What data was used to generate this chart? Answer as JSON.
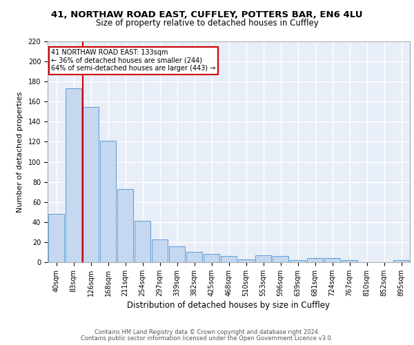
{
  "title1": "41, NORTHAW ROAD EAST, CUFFLEY, POTTERS BAR, EN6 4LU",
  "title2": "Size of property relative to detached houses in Cuffley",
  "xlabel": "Distribution of detached houses by size in Cuffley",
  "ylabel": "Number of detached properties",
  "categories": [
    "40sqm",
    "83sqm",
    "126sqm",
    "168sqm",
    "211sqm",
    "254sqm",
    "297sqm",
    "339sqm",
    "382sqm",
    "425sqm",
    "468sqm",
    "510sqm",
    "553sqm",
    "596sqm",
    "639sqm",
    "681sqm",
    "724sqm",
    "767sqm",
    "810sqm",
    "852sqm",
    "895sqm"
  ],
  "values": [
    48,
    173,
    155,
    121,
    73,
    41,
    23,
    16,
    10,
    8,
    6,
    3,
    7,
    6,
    2,
    4,
    4,
    2,
    0,
    0,
    2
  ],
  "bar_color": "#c5d8f0",
  "bar_edge_color": "#5b9bd5",
  "property_line_index": 2,
  "annotation_text1": "41 NORTHAW ROAD EAST: 133sqm",
  "annotation_text2": "← 36% of detached houses are smaller (244)",
  "annotation_text3": "64% of semi-detached houses are larger (443) →",
  "annotation_box_color": "#ffffff",
  "annotation_box_edge": "#cc0000",
  "vline_color": "#cc0000",
  "footer1": "Contains HM Land Registry data © Crown copyright and database right 2024.",
  "footer2": "Contains public sector information licensed under the Open Government Licence v3.0.",
  "ylim": [
    0,
    220
  ],
  "yticks": [
    0,
    20,
    40,
    60,
    80,
    100,
    120,
    140,
    160,
    180,
    200,
    220
  ],
  "background_color": "#e8eef8",
  "grid_color": "#ffffff",
  "title1_fontsize": 9.5,
  "title2_fontsize": 8.5,
  "xlabel_fontsize": 8.5,
  "ylabel_fontsize": 8.0,
  "tick_fontsize": 7.0,
  "footer_fontsize": 6.0
}
